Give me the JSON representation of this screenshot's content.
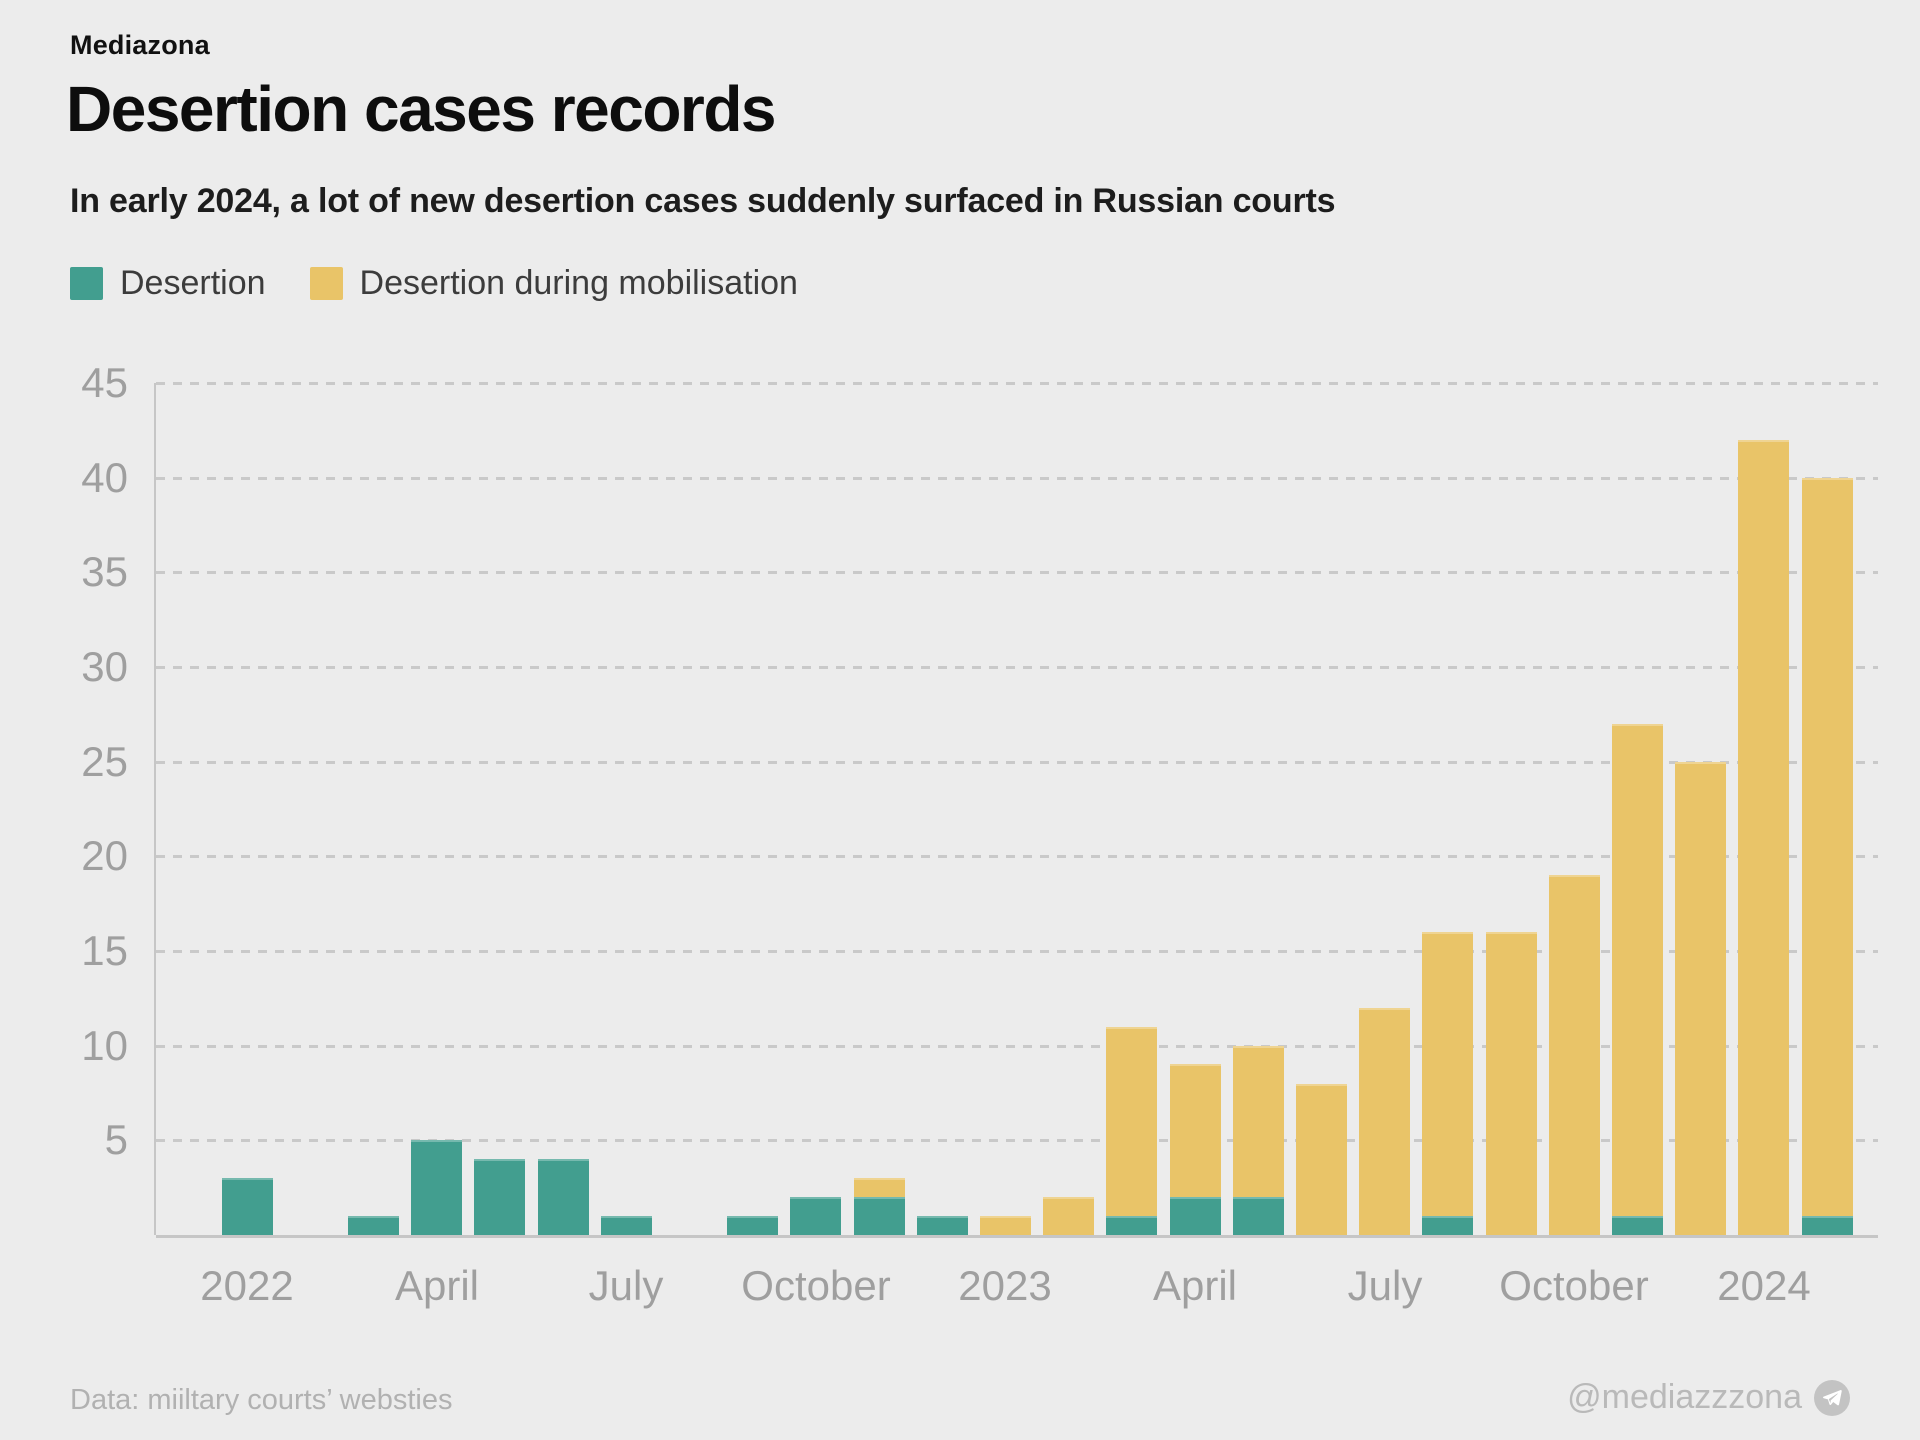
{
  "brand": "Mediazona",
  "title": "Desertion cases records",
  "subtitle": "In early 2024, a lot of new desertion cases suddenly surfaced in Russian courts",
  "legend": [
    {
      "label": "Desertion",
      "color": "#429e8f"
    },
    {
      "label": "Desertion during mobilisation",
      "color": "#e9c468"
    }
  ],
  "footer": {
    "source": "Data: miiltary courts’ websties",
    "handle": "@mediazzzona",
    "icon": "telegram-paper-plane",
    "icon_bg": "#c3c3c3"
  },
  "colors": {
    "background": "#ececec",
    "grid": "#c9c9c9",
    "axis": "#c6c6c6",
    "tick_text": "#9f9f9f"
  },
  "chart_data": {
    "type": "bar",
    "stacked": true,
    "title": "Desertion cases records",
    "xlabel": "",
    "ylabel": "",
    "ylim": [
      0,
      45
    ],
    "y_ticks": [
      5,
      10,
      15,
      20,
      25,
      30,
      35,
      40,
      45
    ],
    "grid": "horizontal-dashed",
    "legend_position": "top-left",
    "months": [
      "Jan 2022",
      "Feb 2022",
      "Mar 2022",
      "Apr 2022",
      "May 2022",
      "Jun 2022",
      "Jul 2022",
      "Aug 2022",
      "Sep 2022",
      "Oct 2022",
      "Nov 2022",
      "Dec 2022",
      "Jan 2023",
      "Feb 2023",
      "Mar 2023",
      "Apr 2023",
      "May 2023",
      "Jun 2023",
      "Jul 2023",
      "Aug 2023",
      "Sep 2023",
      "Oct 2023",
      "Nov 2023",
      "Dec 2023",
      "Jan 2024",
      "Feb 2024"
    ],
    "x_tick_labels": [
      {
        "index": 0,
        "label": "2022"
      },
      {
        "index": 3,
        "label": "April"
      },
      {
        "index": 6,
        "label": "July"
      },
      {
        "index": 9,
        "label": "October"
      },
      {
        "index": 12,
        "label": "2023"
      },
      {
        "index": 15,
        "label": "April"
      },
      {
        "index": 18,
        "label": "July"
      },
      {
        "index": 21,
        "label": "October"
      },
      {
        "index": 24,
        "label": "2024"
      }
    ],
    "series": [
      {
        "name": "Desertion",
        "color": "#429e8f",
        "values": [
          3,
          0,
          1,
          5,
          4,
          4,
          1,
          0,
          1,
          2,
          2,
          1,
          0,
          0,
          1,
          2,
          2,
          0,
          0,
          1,
          0,
          0,
          1,
          0,
          0,
          1
        ]
      },
      {
        "name": "Desertion during mobilisation",
        "color": "#e9c468",
        "values": [
          0,
          0,
          0,
          0,
          0,
          0,
          0,
          0,
          0,
          0,
          1,
          0,
          1,
          2,
          10,
          7,
          8,
          8,
          12,
          15,
          16,
          19,
          26,
          25,
          42,
          39
        ]
      }
    ],
    "totals": [
      3,
      0,
      1,
      5,
      4,
      4,
      1,
      0,
      1,
      2,
      3,
      1,
      1,
      2,
      11,
      9,
      10,
      8,
      12,
      16,
      16,
      19,
      27,
      25,
      42,
      40
    ]
  }
}
